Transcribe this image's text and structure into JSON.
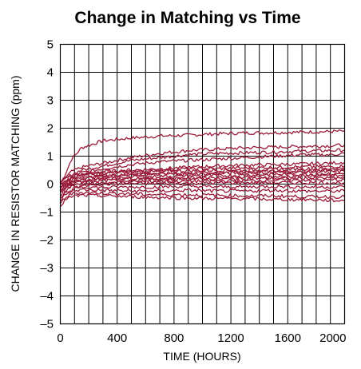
{
  "chart_data": {
    "type": "line",
    "title": "Change in Matching vs Time",
    "xlabel": "TIME (HOURS)",
    "ylabel": "CHANGE IN RESISTOR MATCHING (ppm)",
    "xlim": [
      0,
      2000
    ],
    "ylim": [
      -5,
      5
    ],
    "xticks": [
      "0",
      "400",
      "800",
      "1200",
      "1600",
      "2000"
    ],
    "yticks": [
      "5",
      "4",
      "3",
      "2",
      "1",
      "0",
      "–1",
      "–2",
      "–3",
      "–4",
      "–5"
    ],
    "grid": true,
    "line_color": "#9b1b3a",
    "series": [
      {
        "x": [
          0,
          30,
          80,
          150,
          300,
          500,
          700,
          900,
          1100,
          1300,
          1500,
          1700,
          1900,
          2000
        ],
        "values": [
          0.0,
          0.3,
          0.9,
          1.3,
          1.55,
          1.65,
          1.72,
          1.75,
          1.8,
          1.83,
          1.84,
          1.86,
          1.88,
          1.9
        ]
      },
      {
        "x": [
          0,
          30,
          80,
          150,
          300,
          500,
          700,
          900,
          1100,
          1300,
          1500,
          1700,
          1900,
          2000
        ],
        "values": [
          0.0,
          0.2,
          0.45,
          0.6,
          0.75,
          0.95,
          1.1,
          1.2,
          1.25,
          1.3,
          1.32,
          1.35,
          1.37,
          1.4
        ]
      },
      {
        "x": [
          0,
          30,
          80,
          150,
          300,
          500,
          700,
          900,
          1100,
          1300,
          1500,
          1700,
          1900,
          2000
        ],
        "values": [
          0.0,
          0.15,
          0.35,
          0.5,
          0.65,
          0.85,
          0.95,
          1.05,
          1.1,
          1.12,
          1.15,
          1.18,
          1.2,
          1.22
        ]
      },
      {
        "x": [
          0,
          30,
          80,
          150,
          300,
          500,
          700,
          900,
          1100,
          1300,
          1500,
          1700,
          1900,
          2000
        ],
        "values": [
          -0.1,
          0.05,
          0.25,
          0.4,
          0.55,
          0.7,
          0.8,
          0.85,
          0.9,
          0.95,
          1.0,
          1.05,
          1.05,
          1.1
        ]
      },
      {
        "x": [
          0,
          30,
          80,
          150,
          300,
          500,
          700,
          900,
          1100,
          1300,
          1500,
          1700,
          1900,
          2000
        ],
        "values": [
          -0.2,
          0.0,
          0.2,
          0.35,
          0.45,
          0.5,
          0.55,
          0.6,
          0.65,
          0.68,
          0.7,
          0.72,
          0.75,
          0.78
        ]
      },
      {
        "x": [
          0,
          30,
          80,
          150,
          300,
          500,
          700,
          900,
          1100,
          1300,
          1500,
          1700,
          1900,
          2000
        ],
        "values": [
          -0.3,
          -0.1,
          0.15,
          0.3,
          0.4,
          0.45,
          0.5,
          0.55,
          0.55,
          0.58,
          0.6,
          0.62,
          0.62,
          0.65
        ]
      },
      {
        "x": [
          0,
          30,
          80,
          150,
          300,
          500,
          700,
          900,
          1100,
          1300,
          1500,
          1700,
          1900,
          2000
        ],
        "values": [
          0.1,
          0.2,
          0.3,
          0.35,
          0.4,
          0.42,
          0.45,
          0.48,
          0.5,
          0.5,
          0.52,
          0.55,
          0.55,
          0.58
        ]
      },
      {
        "x": [
          0,
          30,
          80,
          150,
          300,
          500,
          700,
          900,
          1100,
          1300,
          1500,
          1700,
          1900,
          2000
        ],
        "values": [
          -0.4,
          -0.2,
          0.05,
          0.2,
          0.3,
          0.35,
          0.38,
          0.4,
          0.42,
          0.45,
          0.46,
          0.48,
          0.5,
          0.5
        ]
      },
      {
        "x": [
          0,
          30,
          80,
          150,
          300,
          500,
          700,
          900,
          1100,
          1300,
          1500,
          1700,
          1900,
          2000
        ],
        "values": [
          0.0,
          0.1,
          0.2,
          0.25,
          0.3,
          0.32,
          0.35,
          0.36,
          0.38,
          0.4,
          0.42,
          0.42,
          0.44,
          0.45
        ]
      },
      {
        "x": [
          0,
          30,
          80,
          150,
          300,
          500,
          700,
          900,
          1100,
          1300,
          1500,
          1700,
          1900,
          2000
        ],
        "values": [
          -0.5,
          -0.3,
          -0.05,
          0.1,
          0.2,
          0.25,
          0.28,
          0.3,
          0.3,
          0.32,
          0.35,
          0.35,
          0.36,
          0.38
        ]
      },
      {
        "x": [
          0,
          30,
          80,
          150,
          300,
          500,
          700,
          900,
          1100,
          1300,
          1500,
          1700,
          1900,
          2000
        ],
        "values": [
          -0.2,
          -0.1,
          0.05,
          0.15,
          0.2,
          0.22,
          0.2,
          0.22,
          0.25,
          0.25,
          0.26,
          0.28,
          0.3,
          0.3
        ]
      },
      {
        "x": [
          0,
          30,
          80,
          150,
          300,
          500,
          700,
          900,
          1100,
          1300,
          1500,
          1700,
          1900,
          2000
        ],
        "values": [
          0.0,
          0.05,
          0.1,
          0.1,
          0.12,
          0.15,
          0.15,
          0.18,
          0.18,
          0.2,
          0.2,
          0.2,
          0.22,
          0.22
        ]
      },
      {
        "x": [
          0,
          30,
          80,
          150,
          300,
          500,
          700,
          900,
          1100,
          1300,
          1500,
          1700,
          1900,
          2000
        ],
        "values": [
          -0.6,
          -0.4,
          -0.2,
          -0.05,
          0.05,
          0.08,
          0.1,
          0.1,
          0.12,
          0.12,
          0.14,
          0.15,
          0.15,
          0.15
        ]
      },
      {
        "x": [
          0,
          30,
          80,
          150,
          300,
          500,
          700,
          900,
          1100,
          1300,
          1500,
          1700,
          1900,
          2000
        ],
        "values": [
          -0.1,
          -0.05,
          0.0,
          0.0,
          0.0,
          0.02,
          0.02,
          0.03,
          0.04,
          0.05,
          0.05,
          0.05,
          0.05,
          0.05
        ]
      },
      {
        "x": [
          0,
          30,
          80,
          150,
          300,
          500,
          700,
          900,
          1100,
          1300,
          1500,
          1700,
          1900,
          2000
        ],
        "values": [
          -0.3,
          -0.2,
          -0.1,
          -0.1,
          -0.12,
          -0.1,
          -0.1,
          -0.08,
          -0.1,
          -0.1,
          -0.08,
          -0.1,
          -0.1,
          -0.1
        ]
      },
      {
        "x": [
          0,
          30,
          80,
          150,
          300,
          500,
          700,
          900,
          1100,
          1300,
          1500,
          1700,
          1900,
          2000
        ],
        "values": [
          -0.5,
          -0.35,
          -0.25,
          -0.2,
          -0.22,
          -0.25,
          -0.25,
          -0.22,
          -0.25,
          -0.25,
          -0.22,
          -0.25,
          -0.25,
          -0.25
        ]
      },
      {
        "x": [
          0,
          30,
          80,
          150,
          300,
          500,
          700,
          900,
          1100,
          1300,
          1500,
          1700,
          1900,
          2000
        ],
        "values": [
          -0.7,
          -0.5,
          -0.35,
          -0.3,
          -0.32,
          -0.35,
          -0.38,
          -0.38,
          -0.4,
          -0.42,
          -0.42,
          -0.45,
          -0.45,
          -0.45
        ]
      },
      {
        "x": [
          0,
          30,
          80,
          150,
          300,
          500,
          700,
          900,
          1100,
          1300,
          1500,
          1700,
          1900,
          2000
        ],
        "values": [
          -0.8,
          -0.6,
          -0.45,
          -0.4,
          -0.42,
          -0.45,
          -0.48,
          -0.5,
          -0.52,
          -0.52,
          -0.55,
          -0.55,
          -0.58,
          -0.6
        ]
      }
    ]
  }
}
